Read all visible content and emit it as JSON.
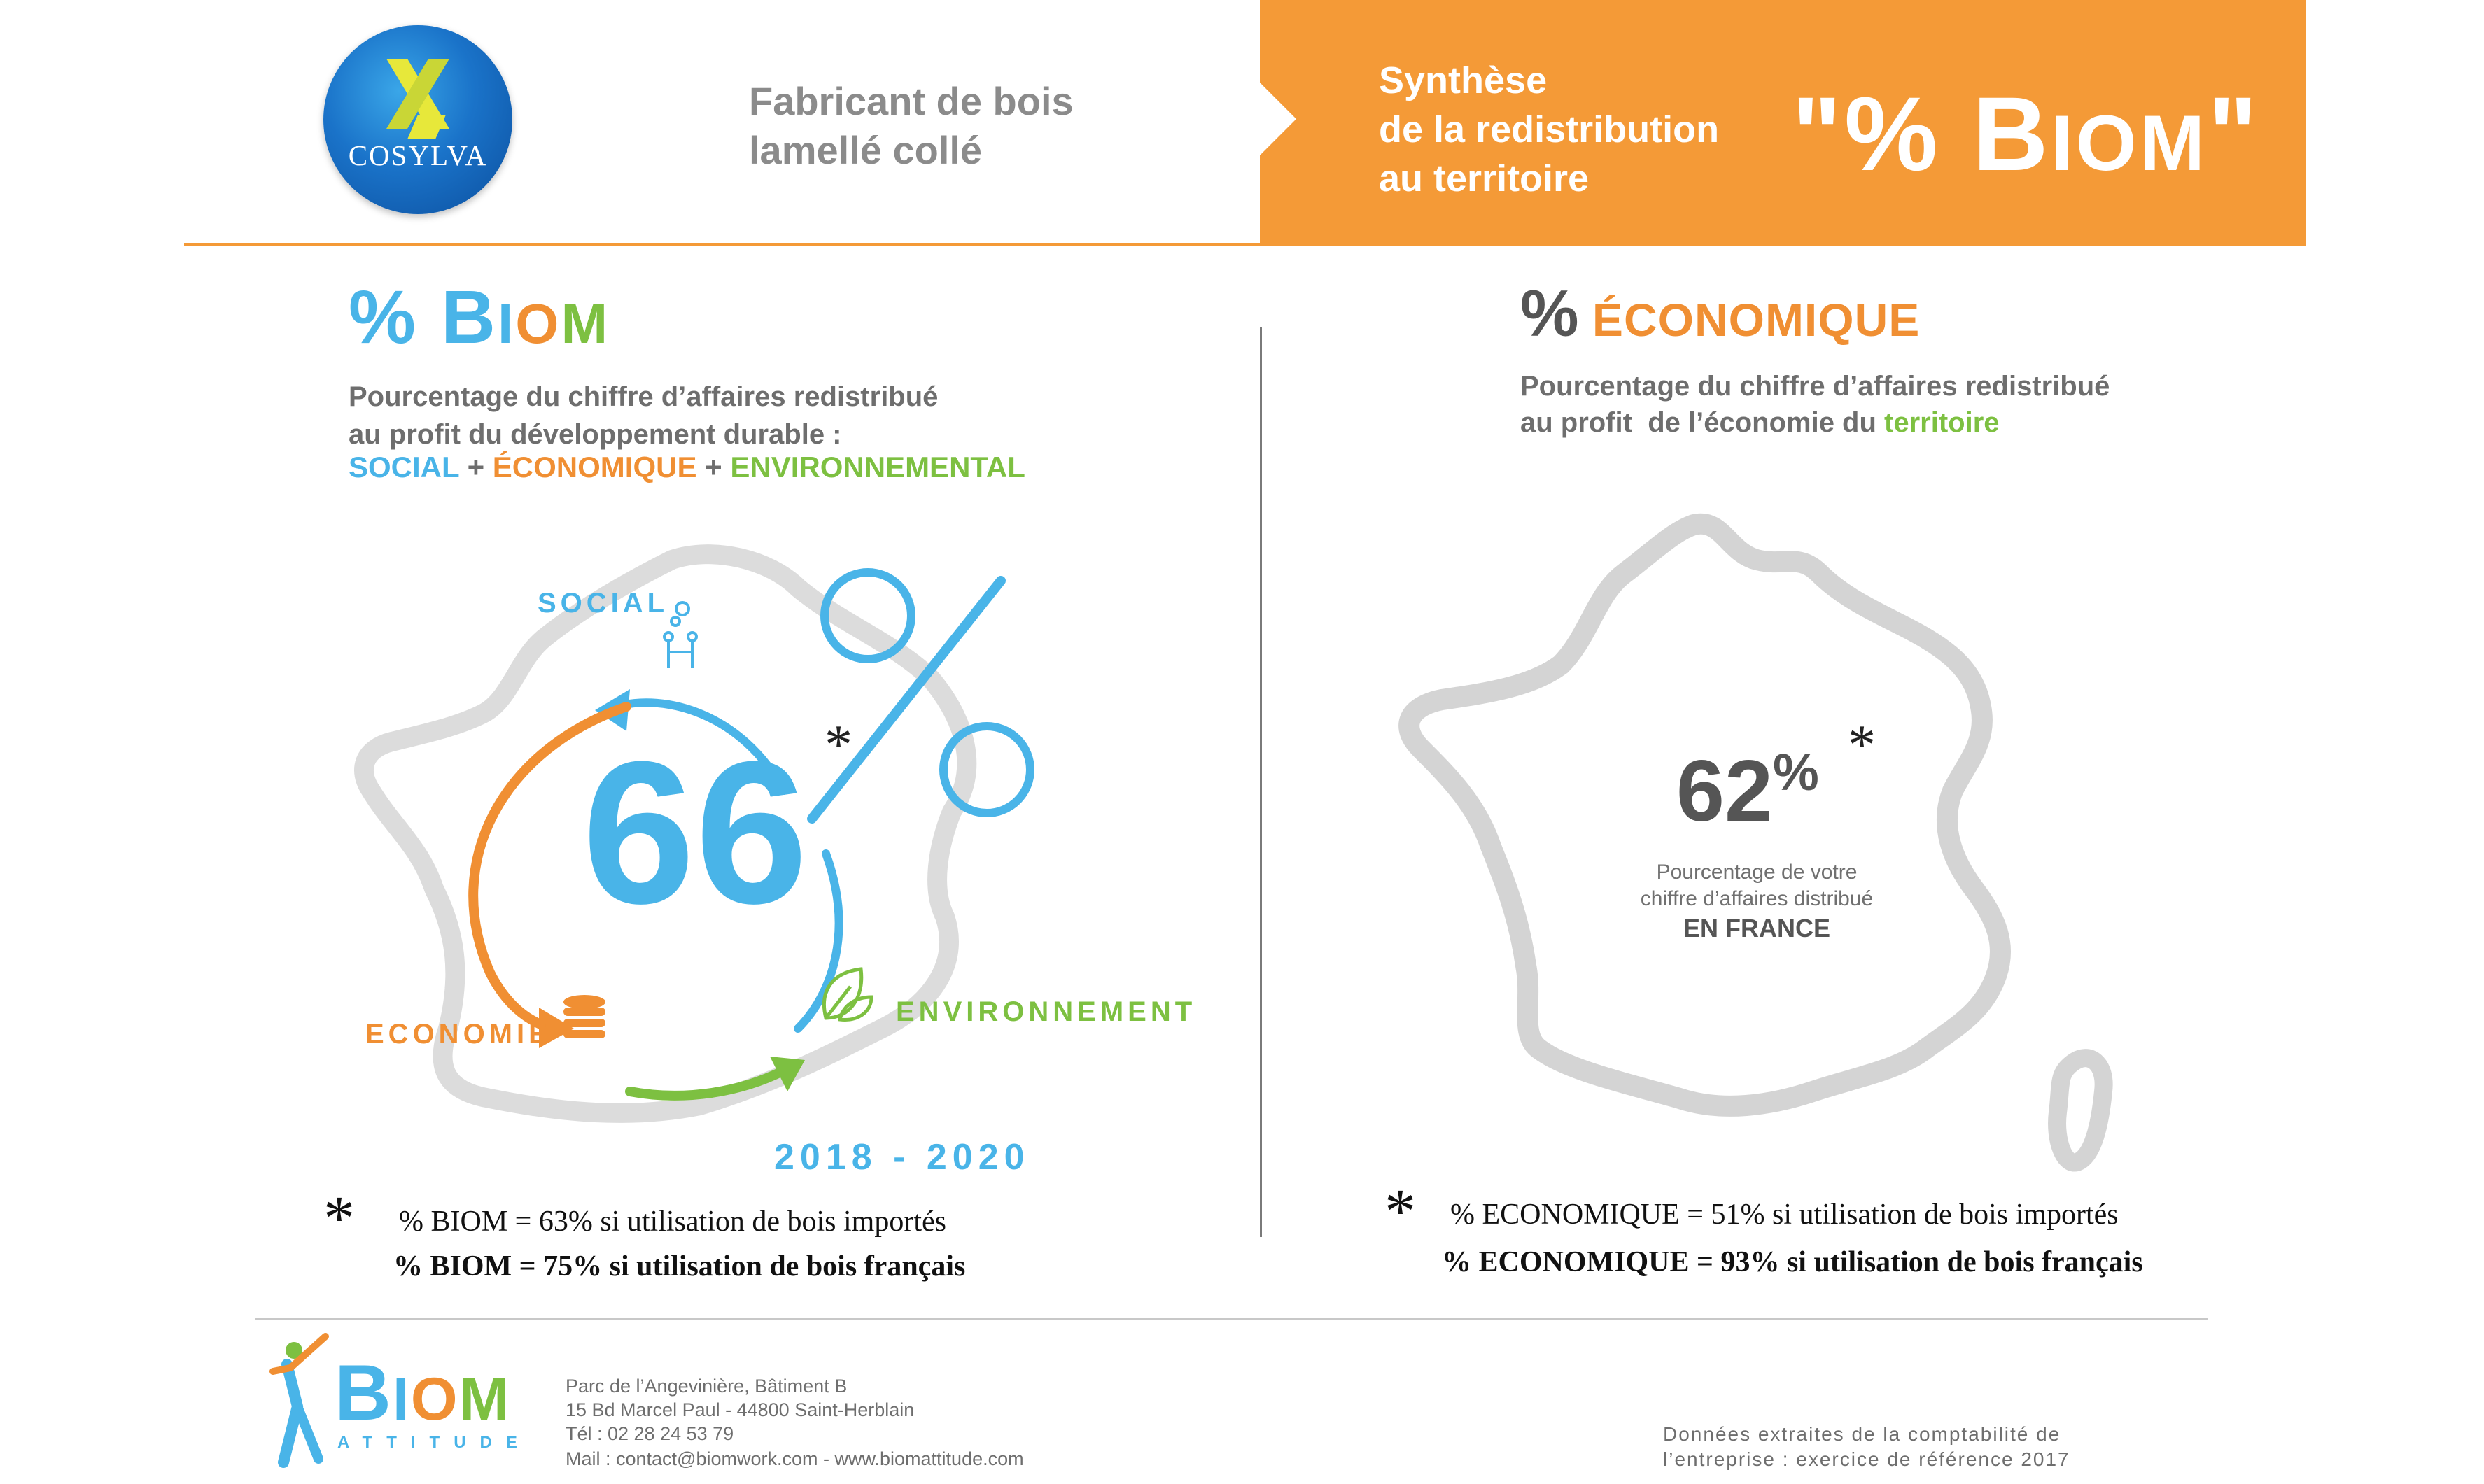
{
  "header": {
    "company_logo_text": "COSYLVA",
    "company_tagline_line1": "Fabricant de bois",
    "company_tagline_line2": "lamellé collé",
    "synthesis_line1": "Synthèse",
    "synthesis_line2": "de la redistribution",
    "synthesis_line3": "au territoire",
    "biom_quote_open": "\"% B",
    "biom_quote_small": "IOM",
    "biom_quote_close": "\""
  },
  "left": {
    "title_prefix": "% B",
    "title_i": "I",
    "title_o": "O",
    "title_m": "M",
    "desc_line1": "Pourcentage du chiffre d’affaires redistribué",
    "desc_line2": "au profit du développement durable :",
    "pillar_social": "SOCIAL",
    "plus1": " + ",
    "pillar_eco": "ÉCONOMIQUE",
    "plus2": " + ",
    "pillar_env": "ENVIRONNEMENTAL",
    "cycle_value": "66",
    "star": "*",
    "label_social": "SOCIAL",
    "label_economie": "ECONOMIE",
    "label_environnement": "ENVIRONNEMENT",
    "period": "2018 - 2020",
    "note_star": "*",
    "note_line1": "% BIOM = 63% si utilisation de bois importés",
    "note_line2": "% BIOM = 75% si utilisation de bois français"
  },
  "right": {
    "title_pct": "%",
    "title_text": " ÉCONOMIQUE",
    "desc_line1": "Pourcentage du chiffre d’affaires redistribué",
    "desc_line2_prefix": "au profit  de l’économie du ",
    "desc_line2_highlight": "territoire",
    "value": "62",
    "value_unit": "%",
    "star": "*",
    "caption_line1": "Pourcentage de votre",
    "caption_line2": "chiffre d’affaires distribué",
    "caption_bold": "EN FRANCE",
    "note_star": "*",
    "note_line1": "% ECONOMIQUE = 51% si utilisation de bois importés",
    "note_line2": "% ECONOMIQUE = 93% si utilisation de bois français"
  },
  "footer": {
    "biom_logo_b": "B",
    "biom_logo_i": "I",
    "biom_logo_o": "O",
    "biom_logo_m": "M",
    "biom_logo_sub": "ATTITUDE",
    "address_line1": "Parc de l’Angevinière, Bâtiment B",
    "address_line2": "15 Bd Marcel Paul - 44800 Saint-Herblain",
    "address_line3": "Tél : 02 28 24 53 79",
    "address_line4": "Mail : contact@biomwork.com - www.biomattitude.com",
    "source_line1": "Données extraites de la comptabilité de",
    "source_line2": "l’entreprise : exercice de référence 2017"
  },
  "colors": {
    "orange": "#f49a37",
    "blue": "#49b4e8",
    "green": "#7dc041",
    "gray_map": "#d4d4d4",
    "text_gray": "#6e6e6e"
  },
  "icons": [
    "cosylva-logo-icon",
    "gears-handshake-icon",
    "coins-icon",
    "leaf-icon",
    "percent-icon",
    "france-map-icon",
    "biom-figure-icon"
  ]
}
